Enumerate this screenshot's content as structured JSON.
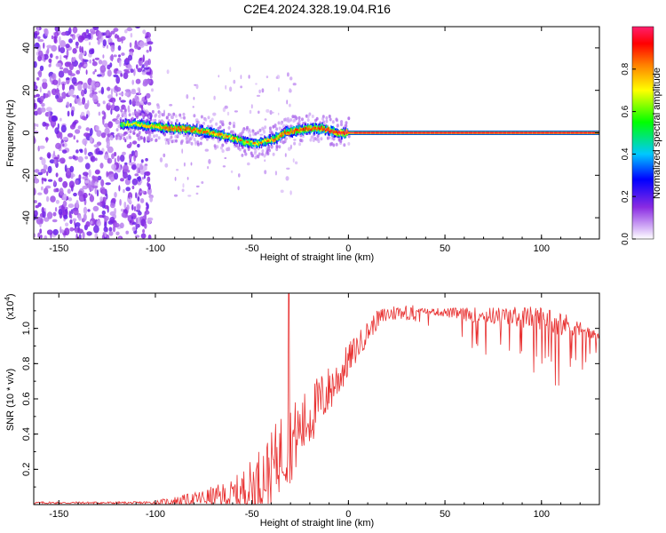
{
  "figure_title": "C2E4.2024.328.19.04.R16",
  "chart_data": [
    {
      "type": "heatmap",
      "xlabel": "Height of straight line (km)",
      "ylabel": "Frequency (Hz)",
      "xlim": [
        -163,
        130
      ],
      "ylim": [
        -50,
        50
      ],
      "xticks": [
        -150,
        -100,
        -50,
        0,
        50,
        100
      ],
      "yticks": [
        -40,
        -20,
        0,
        20,
        40
      ],
      "colorbar": {
        "label": "Normalized spectral amplitude",
        "range": [
          0.0,
          1.0
        ],
        "ticks": [
          0.0,
          0.2,
          0.4,
          0.6,
          0.8
        ],
        "tick_labels": [
          "0.0",
          "0.2",
          "0.4",
          "0.6",
          "0.8"
        ],
        "colors": [
          "#ffffff",
          "#8a2be2",
          "#0000ff",
          "#00e5ff",
          "#00ff00",
          "#ffff00",
          "#ff8000",
          "#ff0000",
          "#ff1493"
        ]
      },
      "noise_region_x": [
        -163,
        -102
      ],
      "ridge": {
        "x": [
          -118,
          -110,
          -100,
          -92,
          -85,
          -78,
          -70,
          -62,
          -55,
          -48,
          -43,
          -38,
          -33,
          -28,
          -20,
          -13,
          -6,
          0,
          5,
          15,
          40,
          80,
          130
        ],
        "freq": [
          4,
          4,
          3,
          2,
          2,
          1,
          0,
          -2,
          -4,
          -5,
          -4,
          -3,
          0,
          1,
          2,
          2,
          0,
          0,
          0,
          0,
          0,
          0,
          0
        ],
        "amplitude": [
          0.3,
          0.5,
          0.6,
          0.7,
          0.75,
          0.7,
          0.6,
          0.5,
          0.45,
          0.45,
          0.55,
          0.6,
          0.7,
          0.75,
          0.8,
          0.85,
          0.9,
          0.95,
          1.0,
          1.0,
          1.0,
          1.0,
          1.0
        ]
      }
    },
    {
      "type": "line",
      "xlabel": "Height of straight line (km)",
      "ylabel": "SNR (10 * v/v)",
      "y_multiplier": "(x10",
      "y_multiplier_exp": "4",
      "xlim": [
        -163,
        130
      ],
      "ylim": [
        0,
        1.2
      ],
      "xticks": [
        -150,
        -100,
        -50,
        0,
        50,
        100
      ],
      "yticks": [
        0.2,
        0.4,
        0.6,
        0.8,
        1.0
      ],
      "ytick_labels": [
        "0.2",
        "0.4",
        "0.6",
        "0.8",
        "1.0"
      ],
      "color": "#e83030",
      "envelope": {
        "x": [
          -163,
          -110,
          -100,
          -90,
          -80,
          -70,
          -60,
          -50,
          -45,
          -40,
          -35,
          -30,
          -25,
          -20,
          -15,
          -10,
          -5,
          0,
          5,
          10,
          15,
          20,
          30,
          40,
          60,
          80,
          100,
          110,
          120,
          130
        ],
        "base": [
          0.01,
          0.01,
          0.01,
          0.02,
          0.03,
          0.04,
          0.05,
          0.1,
          0.15,
          0.2,
          0.3,
          0.35,
          0.42,
          0.5,
          0.58,
          0.65,
          0.72,
          0.82,
          0.9,
          0.98,
          1.05,
          1.08,
          1.1,
          1.1,
          1.08,
          1.07,
          1.06,
          1.03,
          1.0,
          0.95
        ],
        "amp": [
          0.01,
          0.01,
          0.02,
          0.04,
          0.06,
          0.1,
          0.14,
          0.25,
          0.3,
          0.32,
          0.35,
          0.35,
          0.3,
          0.28,
          0.25,
          0.22,
          0.18,
          0.15,
          0.12,
          0.1,
          0.08,
          0.08,
          0.06,
          0.08,
          0.22,
          0.3,
          0.38,
          0.4,
          0.25,
          0.12
        ]
      },
      "spike": {
        "x": -31,
        "y": 1.22
      }
    }
  ]
}
